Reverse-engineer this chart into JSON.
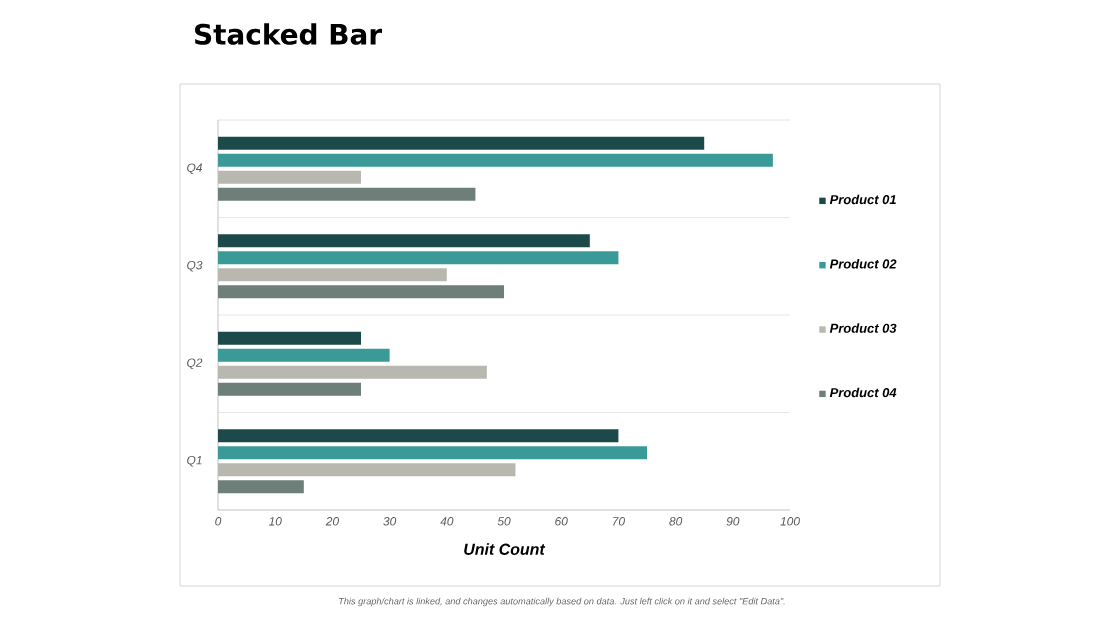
{
  "chart_data": {
    "type": "bar",
    "orientation": "horizontal",
    "title": "Stacked Bar",
    "xlabel": "Unit Count",
    "categories": [
      "Q4",
      "Q3",
      "Q2",
      "Q1"
    ],
    "series": [
      {
        "name": "Product  01",
        "color": "#1c4a4a",
        "values": [
          85,
          65,
          25,
          70
        ]
      },
      {
        "name": "Product  02",
        "color": "#3a9a98",
        "values": [
          97,
          70,
          30,
          75
        ]
      },
      {
        "name": "Product  03",
        "color": "#b8b8b0",
        "values": [
          25,
          40,
          47,
          52
        ]
      },
      {
        "name": "Product 04",
        "color": "#6e7e78",
        "values": [
          45,
          50,
          25,
          15
        ]
      }
    ],
    "xlim": [
      0,
      100
    ],
    "xticks": [
      0,
      10,
      20,
      30,
      40,
      50,
      60,
      70,
      80,
      90,
      100
    ],
    "grid": "y",
    "legend": "right",
    "annotations": [
      "This graph/chart is linked, and changes automatically based on data. Just left click on it and select \"Edit Data\"."
    ]
  }
}
